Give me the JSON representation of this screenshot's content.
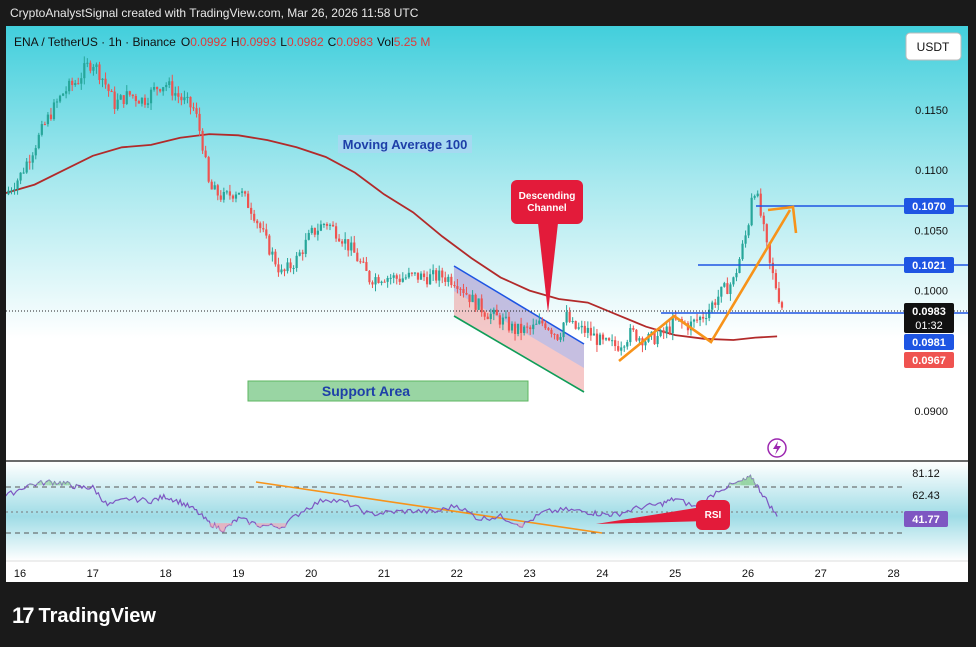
{
  "header": {
    "caption": "CryptoAnalystSignal created with TradingView.com, Mar 26, 2026 11:58 UTC"
  },
  "legend": {
    "symbol": "ENA / TetherUS · 1h · Binance",
    "o_label": "O",
    "o_val": "0.0992",
    "h_label": "H",
    "h_val": "0.0993",
    "l_label": "L",
    "l_val": "0.0982",
    "c_label": "C",
    "c_val": "0.0983",
    "vol_label": "Vol",
    "vol_val": "5.25 M"
  },
  "currency_button": "USDT",
  "annotations": {
    "ma_label": "Moving Average 100",
    "support_label": "Support Area",
    "channel_label_1": "Descending",
    "channel_label_2": "Channel",
    "rsi_label": "RSI"
  },
  "colors": {
    "up": "#26a69a",
    "down": "#ef5350",
    "ma": "#b22a2a",
    "blue": "#1e55e3",
    "orange": "#f7931a",
    "rsi_line": "#7e57c2",
    "support": "#4caf50",
    "channel_callout": "#e31b3a"
  },
  "chart_data": [
    {
      "type": "candlestick",
      "title": "ENA / TetherUS · 1h · Binance",
      "x_ticks": [
        "16",
        "17",
        "18",
        "19",
        "20",
        "21",
        "22",
        "23",
        "24",
        "25",
        "26",
        "27",
        "28"
      ],
      "y_ticks": [
        "0.1150",
        "0.1100",
        "0.1050",
        "0.1000",
        "0.0900"
      ],
      "ylim": [
        0.0875,
        0.1215
      ],
      "series": [
        {
          "name": "Price",
          "close_path": [
            [
              15.8,
              0.108
            ],
            [
              16.0,
              0.1095
            ],
            [
              16.2,
              0.112
            ],
            [
              16.4,
              0.1145
            ],
            [
              16.6,
              0.1165
            ],
            [
              16.8,
              0.1175
            ],
            [
              16.9,
              0.1185
            ],
            [
              17.0,
              0.119
            ],
            [
              17.15,
              0.1175
            ],
            [
              17.3,
              0.1155
            ],
            [
              17.5,
              0.1163
            ],
            [
              17.7,
              0.1158
            ],
            [
              17.9,
              0.117
            ],
            [
              18.0,
              0.1172
            ],
            [
              18.2,
              0.116
            ],
            [
              18.4,
              0.115
            ],
            [
              18.5,
              0.1125
            ],
            [
              18.6,
              0.1085
            ],
            [
              18.8,
              0.1077
            ],
            [
              19.0,
              0.1084
            ],
            [
              19.2,
              0.1066
            ],
            [
              19.4,
              0.1038
            ],
            [
              19.6,
              0.1013
            ],
            [
              19.8,
              0.1026
            ],
            [
              20.0,
              0.1047
            ],
            [
              20.2,
              0.1057
            ],
            [
              20.4,
              0.1046
            ],
            [
              20.6,
              0.103
            ],
            [
              20.8,
              0.101
            ],
            [
              21.0,
              0.1012
            ],
            [
              21.2,
              0.101
            ],
            [
              21.4,
              0.1012
            ],
            [
              21.6,
              0.1011
            ],
            [
              21.8,
              0.1012
            ],
            [
              22.0,
              0.1008
            ],
            [
              22.2,
              0.0993
            ],
            [
              22.4,
              0.0982
            ],
            [
              22.6,
              0.0976
            ],
            [
              22.8,
              0.0967
            ],
            [
              23.0,
              0.0967
            ],
            [
              23.2,
              0.0974
            ],
            [
              23.4,
              0.0962
            ],
            [
              23.5,
              0.0979
            ],
            [
              23.6,
              0.0969
            ],
            [
              23.8,
              0.0966
            ],
            [
              24.0,
              0.0956
            ],
            [
              24.2,
              0.0954
            ],
            [
              24.4,
              0.0965
            ],
            [
              24.6,
              0.0959
            ],
            [
              24.8,
              0.0962
            ],
            [
              25.0,
              0.0974
            ],
            [
              25.2,
              0.0971
            ],
            [
              25.4,
              0.098
            ],
            [
              25.6,
              0.0996
            ],
            [
              25.8,
              0.1008
            ],
            [
              25.9,
              0.103
            ],
            [
              26.0,
              0.1053
            ],
            [
              26.05,
              0.108
            ],
            [
              26.1,
              0.1085
            ],
            [
              26.2,
              0.1055
            ],
            [
              26.3,
              0.1021
            ],
            [
              26.45,
              0.099
            ],
            [
              26.5,
              0.0983
            ]
          ]
        },
        {
          "name": "Moving Average 100",
          "values": [
            [
              15.8,
              0.1081
            ],
            [
              16.2,
              0.1088
            ],
            [
              16.6,
              0.11
            ],
            [
              17.0,
              0.1112
            ],
            [
              17.4,
              0.1119
            ],
            [
              17.8,
              0.1121
            ],
            [
              18.2,
              0.1127
            ],
            [
              18.6,
              0.113
            ],
            [
              19.0,
              0.1129
            ],
            [
              19.4,
              0.1125
            ],
            [
              19.8,
              0.1119
            ],
            [
              20.2,
              0.1111
            ],
            [
              20.6,
              0.1098
            ],
            [
              21.0,
              0.108
            ],
            [
              21.4,
              0.1065
            ],
            [
              21.8,
              0.1045
            ],
            [
              22.2,
              0.1027
            ],
            [
              22.6,
              0.1011
            ],
            [
              23.0,
              0.1
            ],
            [
              23.4,
              0.0993
            ],
            [
              23.8,
              0.099
            ],
            [
              24.2,
              0.098
            ],
            [
              24.6,
              0.097
            ],
            [
              25.0,
              0.0963
            ],
            [
              25.4,
              0.096
            ],
            [
              25.8,
              0.0959
            ],
            [
              26.1,
              0.0961
            ],
            [
              26.4,
              0.0962
            ]
          ]
        }
      ],
      "price_labels": [
        {
          "value": 0.107,
          "text": "0.1070"
        },
        {
          "value": 0.1021,
          "text": "0.1021"
        },
        {
          "value": 0.0983,
          "text": "0.0983",
          "countdown": "01:32"
        },
        {
          "value": 0.0981,
          "text": "0.0981"
        },
        {
          "value": 0.0967,
          "text": "0.0967"
        }
      ]
    },
    {
      "type": "line",
      "title": "",
      "y_ticks": [
        "81.12",
        "62.43",
        "41.77"
      ],
      "ylim": [
        20,
        90
      ],
      "series": [
        {
          "name": "RSI",
          "values": [
            [
              15.8,
              60
            ],
            [
              16.1,
              70
            ],
            [
              16.4,
              73
            ],
            [
              16.6,
              72
            ],
            [
              16.8,
              68
            ],
            [
              17.0,
              68
            ],
            [
              17.2,
              52
            ],
            [
              17.5,
              58
            ],
            [
              17.8,
              56
            ],
            [
              18.0,
              60
            ],
            [
              18.2,
              55
            ],
            [
              18.4,
              48
            ],
            [
              18.6,
              36
            ],
            [
              18.8,
              30
            ],
            [
              19.0,
              40
            ],
            [
              19.3,
              34
            ],
            [
              19.6,
              33
            ],
            [
              19.9,
              48
            ],
            [
              20.2,
              58
            ],
            [
              20.5,
              54
            ],
            [
              20.8,
              44
            ],
            [
              21.1,
              46
            ],
            [
              21.4,
              47
            ],
            [
              21.7,
              46
            ],
            [
              22.0,
              52
            ],
            [
              22.3,
              40
            ],
            [
              22.6,
              42
            ],
            [
              22.9,
              34
            ],
            [
              23.2,
              46
            ],
            [
              23.5,
              48
            ],
            [
              23.8,
              46
            ],
            [
              24.0,
              44
            ],
            [
              24.2,
              44
            ],
            [
              24.5,
              50
            ],
            [
              24.8,
              53
            ],
            [
              25.0,
              58
            ],
            [
              25.3,
              50
            ],
            [
              25.6,
              66
            ],
            [
              25.9,
              73
            ],
            [
              26.05,
              77
            ],
            [
              26.2,
              62
            ],
            [
              26.4,
              42
            ]
          ]
        }
      ]
    }
  ]
}
